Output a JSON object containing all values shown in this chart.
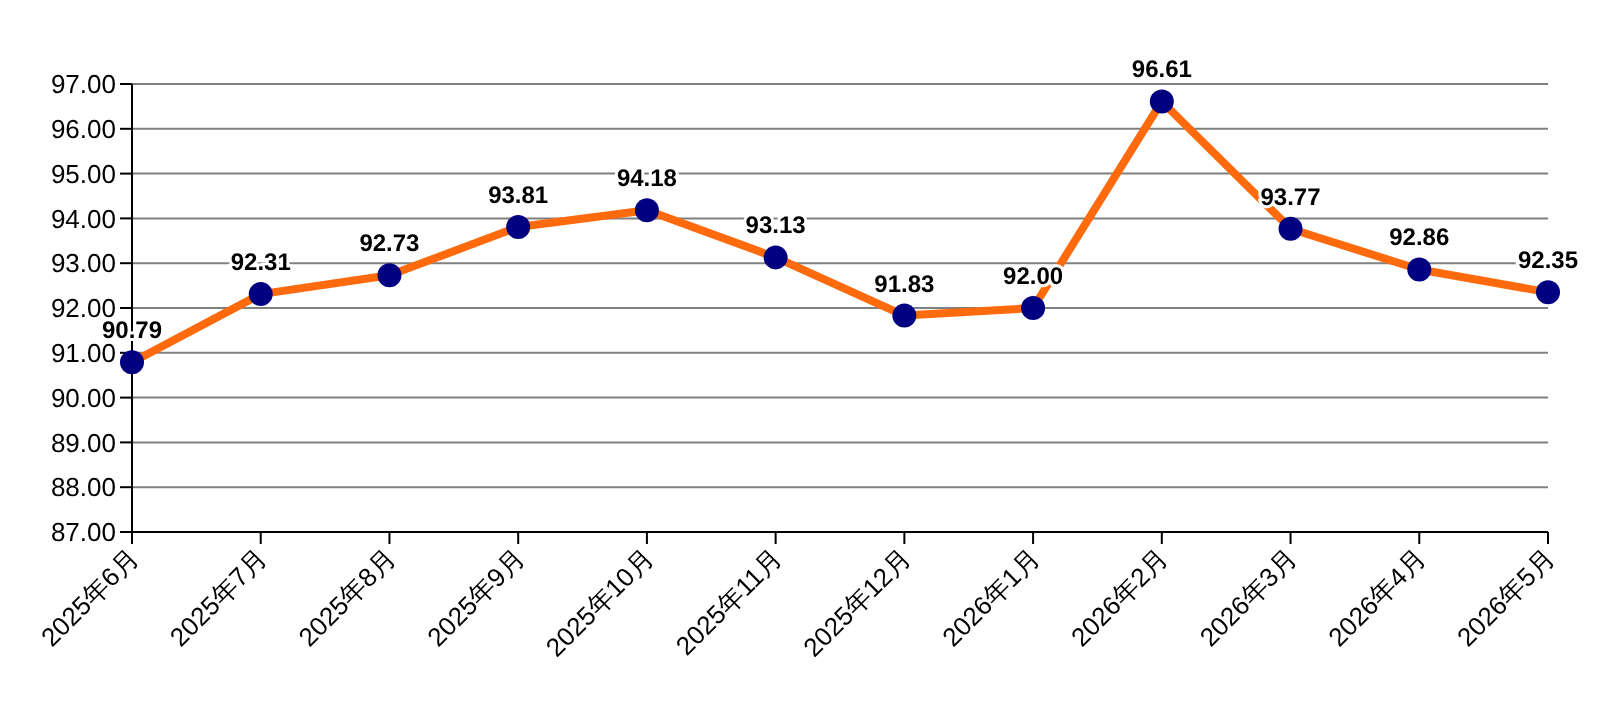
{
  "chart_data": {
    "type": "line",
    "categories": [
      "2025年6月",
      "2025年7月",
      "2025年8月",
      "2025年9月",
      "2025年10月",
      "2025年11月",
      "2025年12月",
      "2026年1月",
      "2026年2月",
      "2026年3月",
      "2026年4月",
      "2026年5月"
    ],
    "series": [
      {
        "color": "#ff6a0d",
        "values": [
          90.79,
          92.31,
          92.73,
          93.81,
          94.18,
          93.13,
          91.83,
          92.0,
          96.61,
          93.77,
          92.86,
          92.35
        ],
        "value_labels": [
          "90.79",
          "92.31",
          "92.73",
          "93.81",
          "94.18",
          "93.13",
          "91.83",
          "92.00",
          "96.61",
          "93.77",
          "92.86",
          "92.35"
        ]
      }
    ],
    "ylim": [
      87,
      97
    ],
    "yticks": [
      {
        "value": 87,
        "label": "87.00"
      },
      {
        "value": 88,
        "label": "88.00"
      },
      {
        "value": 89,
        "label": "89.00"
      },
      {
        "value": 90,
        "label": "90.00"
      },
      {
        "value": 91,
        "label": "91.00"
      },
      {
        "value": 92,
        "label": "92.00"
      },
      {
        "value": 93,
        "label": "93.00"
      },
      {
        "value": 94,
        "label": "94.00"
      },
      {
        "value": 95,
        "label": "95.00"
      },
      {
        "value": 96,
        "label": "96.00"
      },
      {
        "value": 97,
        "label": "97.00"
      }
    ],
    "grid": "y",
    "marker": "circle",
    "line_style": "solid"
  }
}
